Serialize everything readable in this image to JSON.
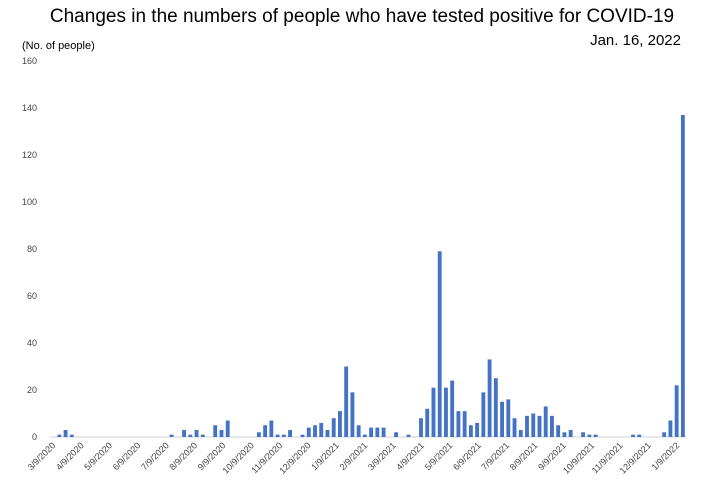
{
  "title": "Changes in the numbers of people who have tested positive for COVID-19",
  "date": "Jan. 16, 2022",
  "chart_data": {
    "type": "bar",
    "title": "Changes in the numbers of people who have tested positive for COVID-19",
    "ylabel": "(No. of people)",
    "xlabel": "",
    "ylim": [
      0,
      160
    ],
    "yticks": [
      0,
      20,
      40,
      60,
      80,
      100,
      120,
      140,
      160
    ],
    "grid": false,
    "x_tick_labels": [
      "3/9/2020",
      "4/9/2020",
      "5/9/2020",
      "6/9/2020",
      "7/9/2020",
      "8/9/2020",
      "9/9/2020",
      "10/9/2020",
      "11/9/2020",
      "12/9/2020",
      "1/9/2021",
      "2/9/2021",
      "3/9/2021",
      "4/9/2021",
      "5/9/2021",
      "6/9/2021",
      "7/9/2021",
      "8/9/2021",
      "9/9/2021",
      "10/9/2021",
      "11/9/2021",
      "12/9/2021",
      "1/9/2022"
    ],
    "bar_color": "#4472C4",
    "values": [
      0,
      1,
      3,
      1,
      0,
      0,
      0,
      0,
      0,
      0,
      0,
      0,
      0,
      0,
      0,
      0,
      0,
      0,
      0,
      1,
      0,
      3,
      1,
      3,
      1,
      0,
      5,
      3,
      7,
      0,
      0,
      0,
      0,
      2,
      5,
      7,
      1,
      1,
      3,
      0,
      1,
      4,
      5,
      6,
      3,
      8,
      11,
      30,
      19,
      5,
      1,
      4,
      4,
      4,
      0,
      2,
      0,
      1,
      0,
      8,
      12,
      21,
      79,
      21,
      24,
      11,
      11,
      5,
      6,
      19,
      33,
      25,
      15,
      16,
      8,
      3,
      9,
      10,
      9,
      13,
      9,
      5,
      2,
      3,
      0,
      2,
      1,
      1,
      0,
      0,
      0,
      0,
      0,
      1,
      1,
      0,
      0,
      0,
      2,
      7,
      22,
      137
    ]
  }
}
